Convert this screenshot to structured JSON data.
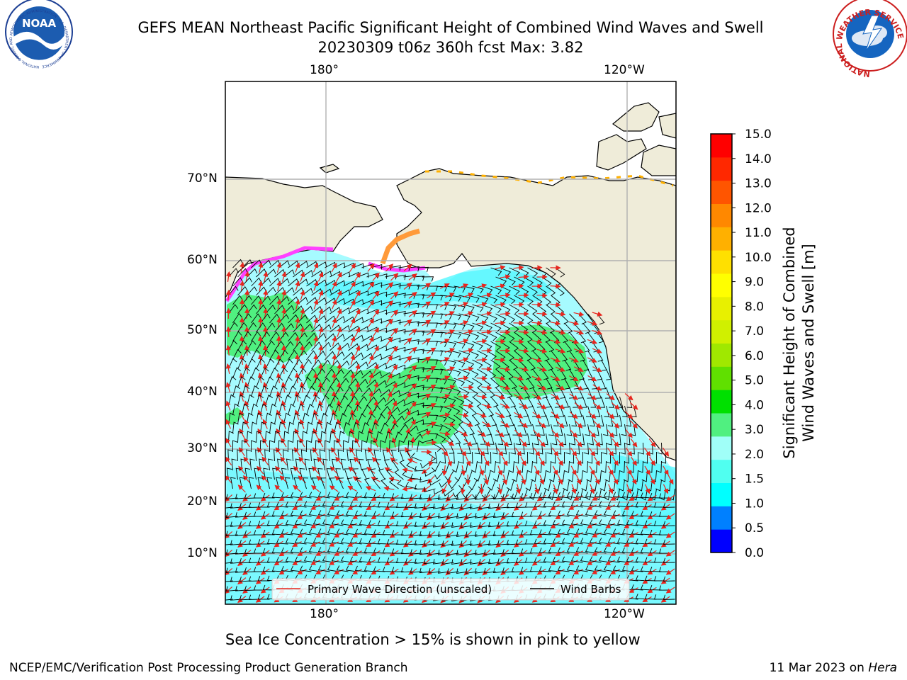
{
  "header": {
    "title_line1": "GEFS MEAN Northeast Pacific Significant Height of Combined Wind Waves and Swell",
    "title_line2": "20230309 t06z 360h fcst   Max: 3.82"
  },
  "logos": {
    "left": "NOAA",
    "left_ring": "NATIONAL OCEANIC AND ATMOSPHERIC ADMINISTRATION · U.S. DEPARTMENT OF COMMERCE",
    "right_ring": "NATIONAL WEATHER SERVICE"
  },
  "axes": {
    "top_lon": [
      "180°",
      "120°W"
    ],
    "bottom_lon": [
      "180°",
      "120°W"
    ],
    "lat": [
      "70°N",
      "60°N",
      "50°N",
      "40°N",
      "30°N",
      "20°N",
      "10°N"
    ]
  },
  "legend": {
    "wave_direction": "Primary Wave Direction (unscaled)",
    "wind_barbs": "Wind Barbs"
  },
  "colorbar": {
    "label_line1": "Significant Height of Combined",
    "label_line2": "Wind Waves and Swell [m]",
    "ticks": [
      "15.0",
      "14.0",
      "13.0",
      "12.0",
      "11.0",
      "10.0",
      "9.0",
      "8.0",
      "7.0",
      "6.0",
      "5.0",
      "4.0",
      "3.0",
      "2.0",
      "1.5",
      "1.0",
      "0.5",
      "0.0"
    ],
    "colors": [
      "#0000ff",
      "#0080ff",
      "#00ffff",
      "#50fff0",
      "#a0fff8",
      "#50f080",
      "#00e000",
      "#60e000",
      "#a0e800",
      "#d0f000",
      "#e8f000",
      "#ffff00",
      "#ffe000",
      "#ffb000",
      "#ff8800",
      "#ff5500",
      "#ff2800",
      "#ff0000"
    ]
  },
  "colors": {
    "land": "#efecd9",
    "ocean_base": "#a6fbff",
    "high_wave": "#50f080",
    "ice": "#ff40ff",
    "wave_arrow": "#e8261e",
    "grid": "#b0b0b0"
  },
  "notes": {
    "sea_ice": "Sea Ice Concentration > 15% is shown in pink to yellow"
  },
  "footer": {
    "left": "NCEP/EMC/Verification Post Processing Product Generation Branch",
    "right_date": "11 Mar 2023 on ",
    "right_host": "Hera"
  }
}
